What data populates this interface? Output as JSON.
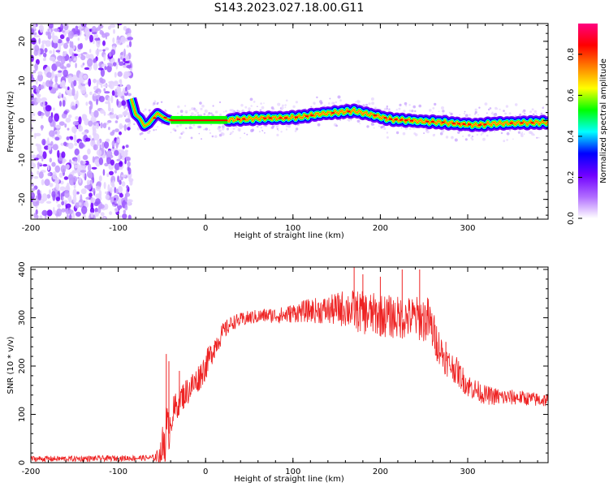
{
  "figure_title": "S143.2023.027.18.00.G11",
  "chart_data": [
    {
      "type": "heatmap",
      "title": "S143.2023.027.18.00.G11",
      "xlabel": "Height of straight line (km)",
      "ylabel": "Frequency (Hz)",
      "xlim": [
        -200,
        392
      ],
      "ylim": [
        -25,
        24.5
      ],
      "x_ticks": [
        -200,
        -100,
        0,
        100,
        200,
        300
      ],
      "y_ticks": [
        -20,
        -10,
        0,
        10,
        20
      ],
      "x_tick_labels": [
        "-200",
        "-100",
        "0",
        "100",
        "200",
        "300"
      ],
      "y_tick_labels": [
        "-20",
        "-10",
        "0",
        "10",
        "20"
      ],
      "noise_region_x": [
        -200,
        -85
      ],
      "flat_segment_x": [
        -40,
        25
      ],
      "ridge": {
        "x": [
          -85,
          -80,
          -75,
          -70,
          -65,
          -60,
          -55,
          -50,
          -45,
          -40,
          -30,
          -20,
          -10,
          0,
          10,
          20,
          30,
          50,
          70,
          90,
          110,
          130,
          150,
          170,
          190,
          210,
          230,
          250,
          270,
          290,
          310,
          330,
          350,
          370,
          392
        ],
        "frequency": [
          5.5,
          1.5,
          0.5,
          -1.5,
          -0.8,
          0.6,
          1.8,
          1.0,
          0.3,
          0.0,
          0.0,
          0.0,
          0.0,
          0.0,
          0.0,
          0.0,
          0.2,
          0.4,
          0.6,
          0.6,
          0.9,
          1.6,
          2.0,
          2.4,
          1.4,
          0.3,
          0.0,
          -0.3,
          -0.5,
          -0.9,
          -1.2,
          -0.8,
          -0.7,
          -0.6,
          -0.5
        ]
      },
      "colorbar": {
        "label": "Normalized spectral amplitude",
        "range": [
          0,
          0.95
        ],
        "ticks": [
          0.0,
          0.2,
          0.4,
          0.6,
          0.8
        ],
        "tick_labels": [
          "0.0",
          "0.2",
          "0.4",
          "0.6",
          "0.8"
        ],
        "colors": [
          "#ffffff",
          "#b06bff",
          "#7000ff",
          "#0000ff",
          "#00ffff",
          "#00ff00",
          "#ffff00",
          "#ff8000",
          "#ff0000",
          "#ff0080"
        ]
      },
      "grid": false
    },
    {
      "type": "line",
      "xlabel": "Height of straight line (km)",
      "ylabel": "SNR (10 * v/v)",
      "xlim": [
        -200,
        392
      ],
      "ylim": [
        0,
        405
      ],
      "x_ticks": [
        -200,
        -100,
        0,
        100,
        200,
        300
      ],
      "y_ticks": [
        0,
        100,
        200,
        300,
        400
      ],
      "x_tick_labels": [
        "-200",
        "-100",
        "0",
        "100",
        "200",
        "300"
      ],
      "y_tick_labels": [
        "0",
        "100",
        "200",
        "300",
        "400"
      ],
      "series_color": "#ee2222",
      "envelope": {
        "x": [
          -200,
          -150,
          -100,
          -60,
          -52,
          -48,
          -45,
          -42,
          -40,
          -35,
          -30,
          -20,
          -10,
          0,
          10,
          20,
          30,
          50,
          70,
          90,
          100,
          120,
          140,
          160,
          180,
          200,
          220,
          240,
          255,
          265,
          275,
          285,
          300,
          320,
          340,
          360,
          380,
          392
        ],
        "mean": [
          8,
          8,
          9,
          10,
          15,
          40,
          70,
          60,
          90,
          110,
          130,
          150,
          170,
          200,
          240,
          270,
          290,
          300,
          305,
          305,
          310,
          315,
          315,
          320,
          310,
          305,
          300,
          300,
          295,
          250,
          210,
          195,
          160,
          140,
          135,
          135,
          130,
          130
        ],
        "amp": [
          6,
          6,
          6,
          6,
          20,
          60,
          60,
          40,
          35,
          35,
          30,
          30,
          30,
          30,
          25,
          20,
          15,
          15,
          15,
          18,
          20,
          25,
          30,
          40,
          45,
          45,
          45,
          45,
          50,
          40,
          30,
          30,
          25,
          20,
          18,
          15,
          15,
          15
        ]
      },
      "spikes": [
        [
          -45,
          225
        ],
        [
          -42,
          210
        ],
        [
          -30,
          190
        ],
        [
          170,
          405
        ],
        [
          180,
          390
        ],
        [
          200,
          385
        ],
        [
          225,
          400
        ],
        [
          245,
          400
        ],
        [
          265,
          210
        ],
        [
          275,
          250
        ]
      ],
      "grid": false
    }
  ]
}
